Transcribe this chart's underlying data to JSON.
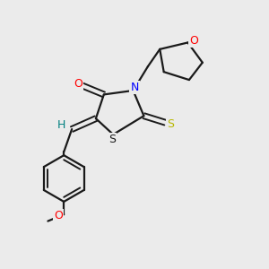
{
  "background_color": "#ebebeb",
  "bond_color": "#1a1a1a",
  "atom_colors": {
    "O": "#ff0000",
    "N": "#0000ff",
    "S_yellow": "#b8b800",
    "S_ring": "#1a1a1a",
    "H": "#008080",
    "C": "#1a1a1a"
  },
  "figsize": [
    3.0,
    3.0
  ],
  "dpi": 100
}
